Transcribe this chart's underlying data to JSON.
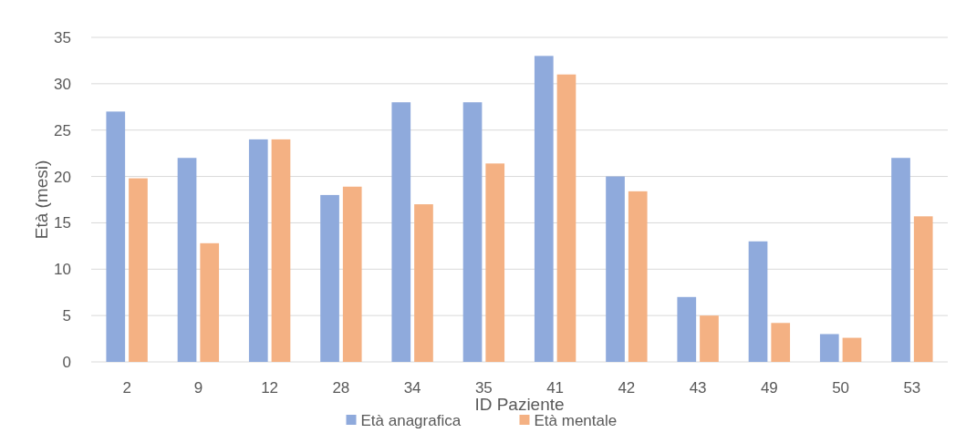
{
  "chart_data": {
    "type": "bar",
    "xlabel": "ID Paziente",
    "ylabel": "Età (mesi)",
    "categories": [
      "2",
      "9",
      "12",
      "28",
      "34",
      "35",
      "41",
      "42",
      "43",
      "49",
      "50",
      "53"
    ],
    "series": [
      {
        "name": "Età anagrafica",
        "color": "#8faadc",
        "values": [
          27,
          22,
          24,
          18,
          28,
          28,
          33,
          20,
          7,
          13,
          3,
          22
        ]
      },
      {
        "name": "Età mentale",
        "color": "#f4b183",
        "values": [
          19.8,
          12.8,
          24,
          18.9,
          17,
          21.4,
          31,
          18.4,
          5,
          4.2,
          2.6,
          15.7
        ]
      }
    ],
    "ylim": [
      0,
      35
    ],
    "yticks": [
      0,
      5,
      10,
      15,
      20,
      25,
      30,
      35
    ],
    "grid": "y",
    "legend": "bottom"
  }
}
